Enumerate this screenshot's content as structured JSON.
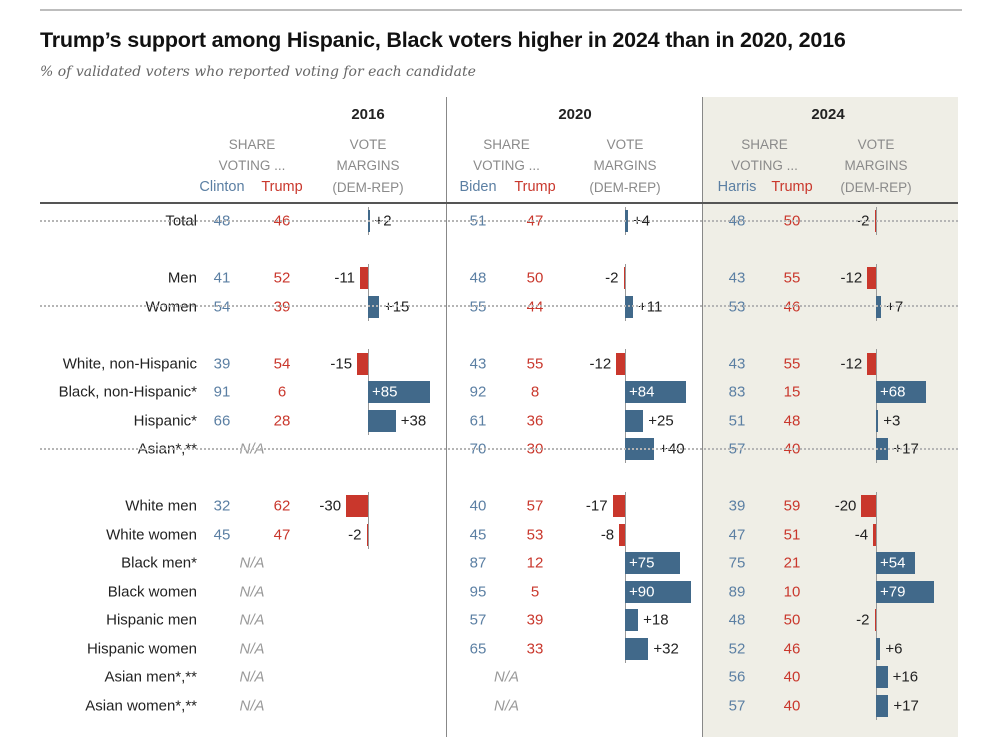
{
  "title": "Trump’s support among Hispanic, Black voters higher in 2024 than in 2020, 2016",
  "subtitle": "% of validated voters who reported voting for each candidate",
  "colors": {
    "dem": "#5b7fa3",
    "rep": "#c9372c",
    "dem_bar": "#41698a",
    "rep_bar": "#c9372c",
    "shade_2024": "#efeee6"
  },
  "chart_data": {
    "type": "table",
    "header": {
      "share_line1": "SHARE",
      "share_line2": "VOTING ...",
      "margin_line1": "VOTE",
      "margin_line2": "MARGINS",
      "margin_line3": "(DEM-REP)",
      "na": "N/A"
    },
    "years": [
      {
        "year": "2016",
        "dem": "Clinton",
        "rep": "Trump",
        "highlighted": false
      },
      {
        "year": "2020",
        "dem": "Biden",
        "rep": "Trump",
        "highlighted": false
      },
      {
        "year": "2024",
        "dem": "Harris",
        "rep": "Trump",
        "highlighted": true
      }
    ],
    "groups": [
      [
        {
          "label": "Total",
          "v": [
            [
              48,
              46,
              2
            ],
            [
              51,
              47,
              4
            ],
            [
              48,
              50,
              -2
            ]
          ]
        }
      ],
      [
        {
          "label": "Men",
          "v": [
            [
              41,
              52,
              -11
            ],
            [
              48,
              50,
              -2
            ],
            [
              43,
              55,
              -12
            ]
          ]
        },
        {
          "label": "Women",
          "v": [
            [
              54,
              39,
              15
            ],
            [
              55,
              44,
              11
            ],
            [
              53,
              46,
              7
            ]
          ]
        }
      ],
      [
        {
          "label": "White, non-Hispanic",
          "v": [
            [
              39,
              54,
              -15
            ],
            [
              43,
              55,
              -12
            ],
            [
              43,
              55,
              -12
            ]
          ]
        },
        {
          "label": "Black, non-Hispanic*",
          "v": [
            [
              91,
              6,
              85
            ],
            [
              92,
              8,
              84
            ],
            [
              83,
              15,
              68
            ]
          ]
        },
        {
          "label": "Hispanic*",
          "v": [
            [
              66,
              28,
              38
            ],
            [
              61,
              36,
              25
            ],
            [
              51,
              48,
              3
            ]
          ]
        },
        {
          "label": "Asian*,**",
          "v": [
            null,
            [
              70,
              30,
              40
            ],
            [
              57,
              40,
              17
            ]
          ]
        }
      ],
      [
        {
          "label": "White men",
          "v": [
            [
              32,
              62,
              -30
            ],
            [
              40,
              57,
              -17
            ],
            [
              39,
              59,
              -20
            ]
          ]
        },
        {
          "label": "White women",
          "v": [
            [
              45,
              47,
              -2
            ],
            [
              45,
              53,
              -8
            ],
            [
              47,
              51,
              -4
            ]
          ]
        },
        {
          "label": "Black men*",
          "v": [
            null,
            [
              87,
              12,
              75
            ],
            [
              75,
              21,
              54
            ]
          ]
        },
        {
          "label": "Black women",
          "v": [
            null,
            [
              95,
              5,
              90
            ],
            [
              89,
              10,
              79
            ]
          ]
        },
        {
          "label": "Hispanic men",
          "v": [
            null,
            [
              57,
              39,
              18
            ],
            [
              48,
              50,
              -2
            ]
          ]
        },
        {
          "label": "Hispanic women",
          "v": [
            null,
            [
              65,
              33,
              32
            ],
            [
              52,
              46,
              6
            ]
          ]
        },
        {
          "label": "Asian men*,**",
          "v": [
            null,
            null,
            [
              56,
              40,
              16
            ]
          ]
        },
        {
          "label": "Asian women*,**",
          "v": [
            null,
            null,
            [
              57,
              40,
              17
            ]
          ]
        }
      ]
    ]
  }
}
